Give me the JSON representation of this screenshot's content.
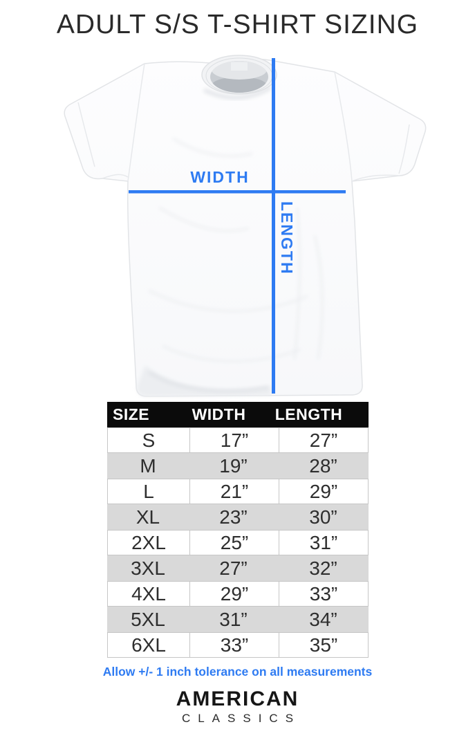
{
  "header": {
    "title": "ADULT S/S T-SHIRT SIZING"
  },
  "diagram": {
    "width_label": "WIDTH",
    "length_label": "LENGTH"
  },
  "table": {
    "headers": [
      "SIZE",
      "WIDTH",
      "LENGTH"
    ],
    "rows": [
      [
        "S",
        "17”",
        "27”"
      ],
      [
        "M",
        "19”",
        "28”"
      ],
      [
        "L",
        "21”",
        "29”"
      ],
      [
        "XL",
        "23”",
        "30”"
      ],
      [
        "2XL",
        "25”",
        "31”"
      ],
      [
        "3XL",
        "27”",
        "32”"
      ],
      [
        "4XL",
        "29”",
        "33”"
      ],
      [
        "5XL",
        "31”",
        "34”"
      ],
      [
        "6XL",
        "33”",
        "35”"
      ]
    ]
  },
  "note": "Allow +/- 1 inch tolerance on all measurements",
  "brand": {
    "line1": "AMERICAN",
    "line2": "CLASSICS"
  },
  "colors": {
    "accent_blue": "#2e7bf2",
    "header_bg": "#0b0b0b",
    "row_alt": "#d9d9d9",
    "border": "#c6c6c6",
    "text_dark": "#2e2e2e"
  },
  "chart_data": {
    "type": "table",
    "title": "ADULT S/S T-SHIRT SIZING",
    "columns": [
      "SIZE",
      "WIDTH (inches)",
      "LENGTH (inches)"
    ],
    "sizes": [
      "S",
      "M",
      "L",
      "XL",
      "2XL",
      "3XL",
      "4XL",
      "5XL",
      "6XL"
    ],
    "width_in": [
      17,
      19,
      21,
      23,
      25,
      27,
      29,
      31,
      33
    ],
    "length_in": [
      27,
      28,
      29,
      30,
      31,
      32,
      33,
      34,
      35
    ],
    "tolerance_note": "Allow +/- 1 inch tolerance on all measurements",
    "measure_axes": [
      "WIDTH",
      "LENGTH"
    ]
  }
}
